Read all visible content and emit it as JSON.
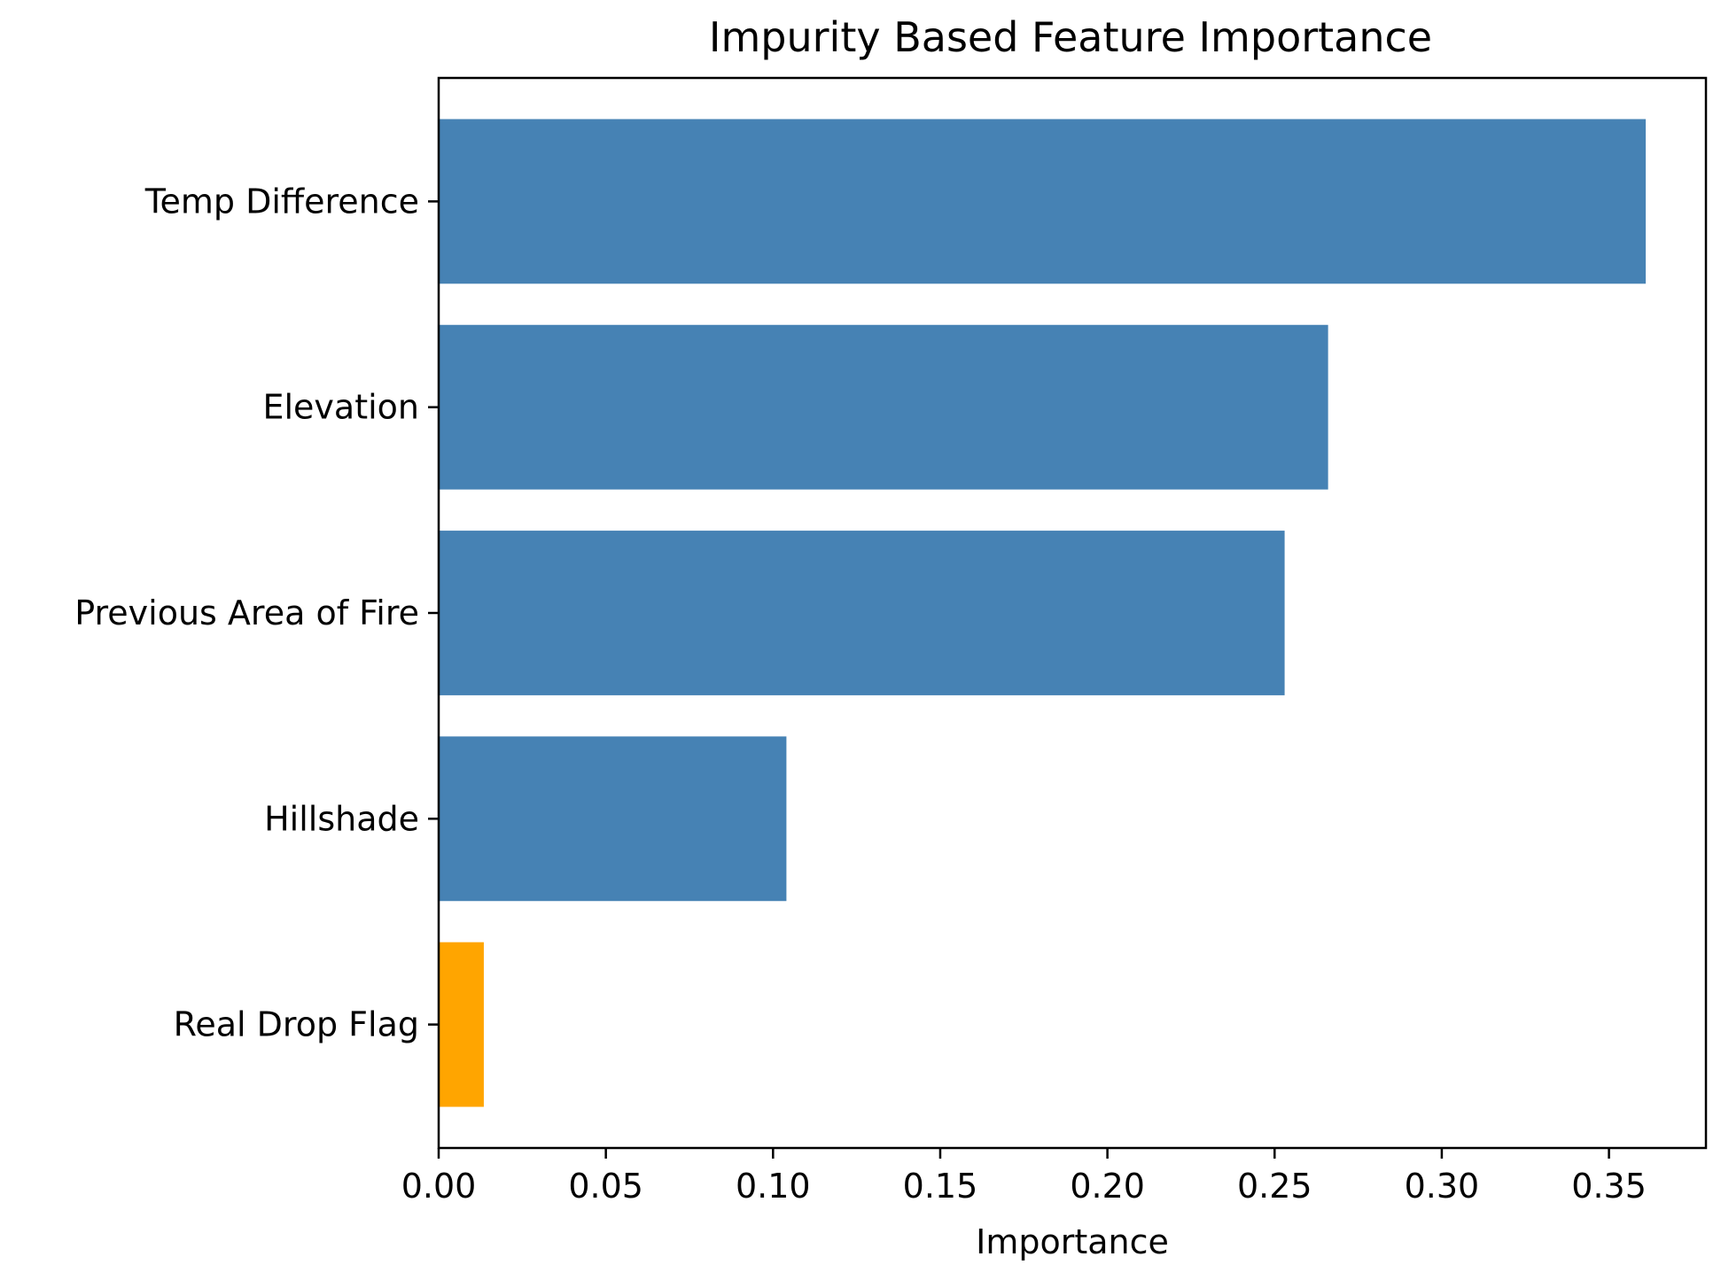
{
  "chart_data": {
    "type": "bar",
    "orientation": "horizontal",
    "title": "Impurity Based Feature Importance",
    "xlabel": "Importance",
    "ylabel": "",
    "categories": [
      "Temp Difference",
      "Elevation",
      "Previous Area of Fire",
      "Hillshade",
      "Real Drop Flag"
    ],
    "values": [
      0.361,
      0.266,
      0.253,
      0.104,
      0.0135
    ],
    "bar_colors": [
      "#4682b4",
      "#4682b4",
      "#4682b4",
      "#4682b4",
      "#ffa500"
    ],
    "xlim": [
      0,
      0.379
    ],
    "xticks": [
      0.0,
      0.05,
      0.1,
      0.15,
      0.2,
      0.25,
      0.3,
      0.35
    ],
    "xtick_labels": [
      "0.00",
      "0.05",
      "0.10",
      "0.15",
      "0.20",
      "0.25",
      "0.30",
      "0.35"
    ],
    "grid": false,
    "legend": "none"
  }
}
